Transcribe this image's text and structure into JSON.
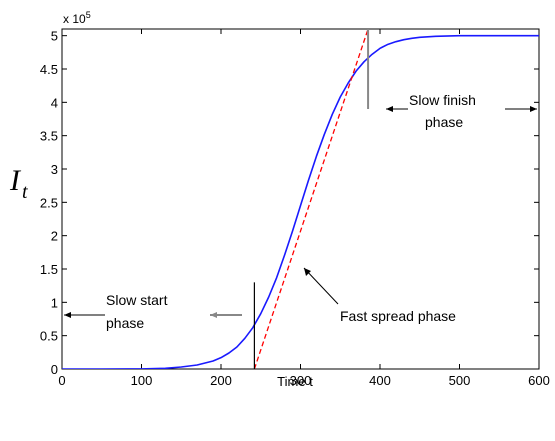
{
  "chart_data": {
    "type": "line",
    "title": "",
    "xlabel": "Time t",
    "ylabel_main": "I",
    "ylabel_sub": "t",
    "y_scale_base": "x 10",
    "y_scale_exp": "5",
    "xlim": [
      0,
      600
    ],
    "ylim": [
      0,
      5.1
    ],
    "x_ticks": [
      0,
      100,
      200,
      300,
      400,
      500,
      600
    ],
    "x_tick_labels": [
      "0",
      "100",
      "200",
      "300",
      "400",
      "500",
      "600"
    ],
    "y_ticks": [
      0,
      0.5,
      1,
      1.5,
      2,
      2.5,
      3,
      3.5,
      4,
      4.5,
      5
    ],
    "y_tick_labels": [
      "0",
      "0.5",
      "1",
      "1.5",
      "2",
      "2.5",
      "3",
      "3.5",
      "4",
      "4.5",
      "5"
    ],
    "grid": false,
    "series": [
      {
        "style": "solid",
        "color": "#1a1aff",
        "x": [
          0,
          50,
          100,
          130,
          150,
          170,
          190,
          200,
          210,
          220,
          230,
          240,
          250,
          260,
          270,
          280,
          290,
          300,
          310,
          320,
          330,
          340,
          350,
          360,
          370,
          380,
          390,
          400,
          410,
          420,
          430,
          440,
          450,
          470,
          500,
          550,
          600
        ],
        "values": [
          0,
          0,
          0.002,
          0.01,
          0.03,
          0.06,
          0.12,
          0.17,
          0.24,
          0.33,
          0.46,
          0.62,
          0.83,
          1.08,
          1.37,
          1.71,
          2.07,
          2.45,
          2.83,
          3.19,
          3.52,
          3.82,
          4.08,
          4.29,
          4.47,
          4.61,
          4.72,
          4.81,
          4.87,
          4.91,
          4.94,
          4.96,
          4.975,
          4.99,
          5.0,
          5.0,
          5.0
        ]
      },
      {
        "style": "dashed",
        "color": "#ff0000",
        "x": [
          242,
          385
        ],
        "values": [
          0,
          5.1
        ]
      }
    ],
    "phase_markers": [
      {
        "x": 242,
        "y_from": 0,
        "y_to": 1.3,
        "color": "#000000"
      },
      {
        "x": 385,
        "y_from": 3.9,
        "y_to": 5.1,
        "color": "#888888"
      }
    ],
    "annotations": [
      {
        "line1": "Slow start",
        "line2": "phase"
      },
      {
        "line1": "Fast spread phase"
      },
      {
        "line1": "Slow finish",
        "line2": "phase"
      }
    ]
  }
}
